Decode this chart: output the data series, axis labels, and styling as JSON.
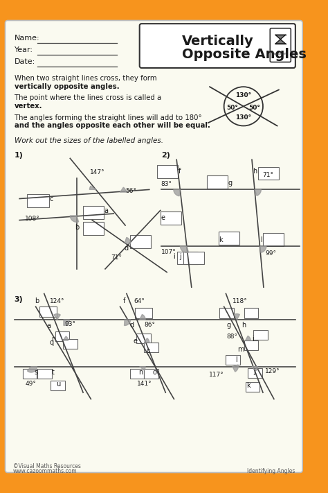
{
  "bg_color": "#F7941D",
  "inner_bg": "#FAFAF0",
  "title_line1": "Vertically",
  "title_line2": "Opposite Angles",
  "header_fields": [
    "Name:",
    "Year:",
    "Date:"
  ],
  "text_color": "#1a1a1a",
  "line_color": "#444444",
  "box_color": "#666666",
  "shade_color": "#999999"
}
